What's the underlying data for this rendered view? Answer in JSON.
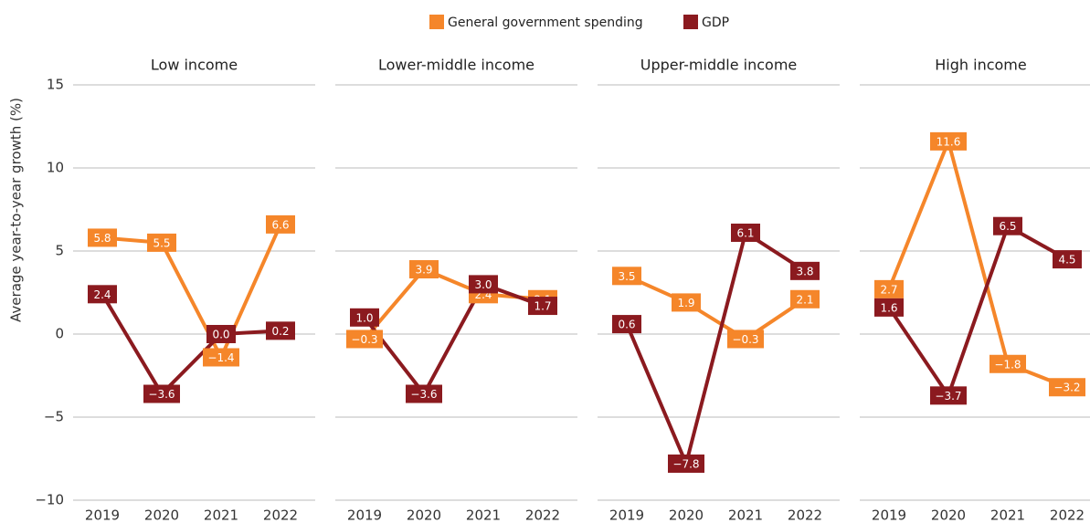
{
  "chart_data": [
    {
      "type": "line",
      "title": "Low income",
      "y_label": "Average year-to-year growth (%)",
      "categories": [
        "2019",
        "2020",
        "2021",
        "2022"
      ],
      "series": [
        {
          "name": "General government spending",
          "color": "#f5862a",
          "values": [
            5.8,
            5.5,
            -1.4,
            6.6
          ],
          "value_labels": [
            "5.8",
            "5.5",
            "−1.4",
            "6.6"
          ]
        },
        {
          "name": "GDP",
          "color": "#8b1a1f",
          "values": [
            2.4,
            -3.6,
            0.0,
            0.2
          ],
          "value_labels": [
            "2.4",
            "−3.6",
            "0.0",
            "0.2"
          ]
        }
      ],
      "ylim": [
        -10,
        15
      ],
      "yticks": [
        {
          "value": -10,
          "label": "−10"
        },
        {
          "value": -5,
          "label": "−5"
        },
        0,
        5,
        10,
        15
      ],
      "grid": true
    },
    {
      "type": "line",
      "title": "Lower-middle income",
      "categories": [
        "2019",
        "2020",
        "2021",
        "2022"
      ],
      "series": [
        {
          "name": "General government spending",
          "color": "#f5862a",
          "values": [
            -0.3,
            3.9,
            2.4,
            2.1
          ],
          "value_labels": [
            "−0.3",
            "3.9",
            "2.4",
            "2.1"
          ]
        },
        {
          "name": "GDP",
          "color": "#8b1a1f",
          "values": [
            1.0,
            -3.6,
            3.0,
            1.7
          ],
          "value_labels": [
            "1.0",
            "−3.6",
            "3.0",
            "1.7"
          ]
        }
      ],
      "ylim": [
        -10,
        15
      ],
      "yticks": [
        {
          "value": -10,
          "label": "−10"
        },
        {
          "value": -5,
          "label": "−5"
        },
        0,
        5,
        10,
        15
      ],
      "grid": true
    },
    {
      "type": "line",
      "title": "Upper-middle income",
      "categories": [
        "2019",
        "2020",
        "2021",
        "2022"
      ],
      "series": [
        {
          "name": "General government spending",
          "color": "#f5862a",
          "values": [
            3.5,
            1.9,
            -0.3,
            2.1
          ],
          "value_labels": [
            "3.5",
            "1.9",
            "−0.3",
            "2.1"
          ]
        },
        {
          "name": "GDP",
          "color": "#8b1a1f",
          "values": [
            0.6,
            -7.8,
            6.1,
            3.8
          ],
          "value_labels": [
            "0.6",
            "−7.8",
            "6.1",
            "3.8"
          ]
        }
      ],
      "ylim": [
        -10,
        15
      ],
      "yticks": [
        {
          "value": -10,
          "label": "−10"
        },
        {
          "value": -5,
          "label": "−5"
        },
        0,
        5,
        10,
        15
      ],
      "grid": true
    },
    {
      "type": "line",
      "title": "High income",
      "categories": [
        "2019",
        "2020",
        "2021",
        "2022"
      ],
      "series": [
        {
          "name": "General government spending",
          "color": "#f5862a",
          "values": [
            2.7,
            11.6,
            -1.8,
            -3.2
          ],
          "value_labels": [
            "2.7",
            "11.6",
            "−1.8",
            "−3.2"
          ]
        },
        {
          "name": "GDP",
          "color": "#8b1a1f",
          "values": [
            1.6,
            -3.7,
            6.5,
            4.5
          ],
          "value_labels": [
            "1.6",
            "−3.7",
            "6.5",
            "4.5"
          ]
        }
      ],
      "ylim": [
        -10,
        15
      ],
      "yticks": [
        {
          "value": -10,
          "label": "−10"
        },
        {
          "value": -5,
          "label": "−5"
        },
        0,
        5,
        10,
        15
      ],
      "grid": true
    }
  ]
}
